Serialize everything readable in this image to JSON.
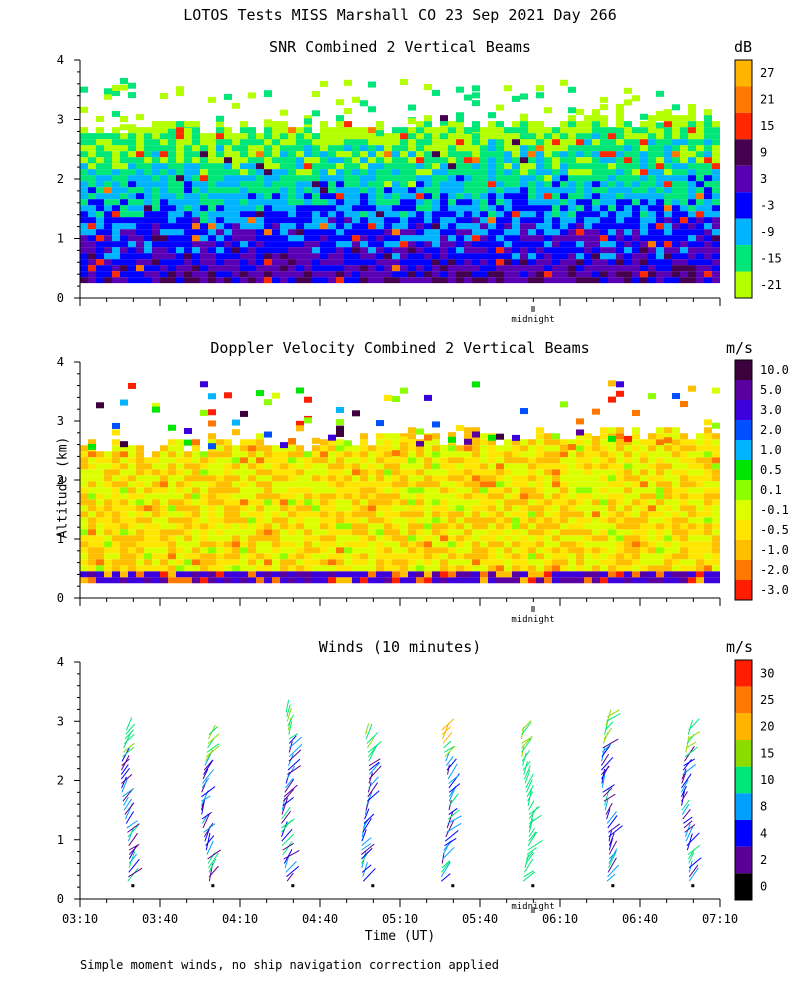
{
  "figure_title": "LOTOS Tests MISS Marshall CO  23 Sep 2021 Day 266",
  "y_axis_label": "Altitude (km)",
  "footnote": "Simple moment winds, no ship navigation correction applied",
  "midnight_label": "midnight",
  "chart_data": [
    {
      "type": "heatmap",
      "title": "SNR Combined 2 Vertical Beams",
      "unit": "dB",
      "ylim": [
        0,
        4
      ],
      "yticks": [
        "0",
        "1",
        "2",
        "3",
        "4"
      ],
      "data_top_km": [
        2.8,
        3.0
      ],
      "colorbar": {
        "labels": [
          "27",
          "21",
          "15",
          "9",
          "3",
          "-3",
          "-9",
          "-15",
          "-21"
        ],
        "colors": [
          "#ffb400",
          "#ff7800",
          "#ff2800",
          "#460050",
          "#5a00b4",
          "#0000ff",
          "#00b4ff",
          "#00e678",
          "#b4ff00"
        ]
      }
    },
    {
      "type": "heatmap",
      "title": "Doppler Velocity Combined 2 Vertical Beams",
      "unit": "m/s",
      "ylim": [
        0,
        4
      ],
      "yticks": [
        "0",
        "1",
        "2",
        "3",
        "4"
      ],
      "data_top_km": [
        2.5,
        2.8
      ],
      "colorbar": {
        "labels": [
          "10.0",
          "5.0",
          "3.0",
          "2.0",
          "1.0",
          "0.5",
          "0.1",
          "-0.1",
          "-0.5",
          "-1.0",
          "-2.0",
          "-3.0"
        ],
        "colors": [
          "#3c003c",
          "#5a00a0",
          "#3c00dc",
          "#0050ff",
          "#00b4ff",
          "#00e600",
          "#8cff00",
          "#dcff00",
          "#ffe600",
          "#ffbe00",
          "#ff7800",
          "#ff1e00"
        ]
      }
    },
    {
      "type": "wind-barbs",
      "title": "Winds (10 minutes)",
      "unit": "m/s",
      "ylim": [
        0,
        4
      ],
      "yticks": [
        "0",
        "1",
        "2",
        "3",
        "4"
      ],
      "xlabel": "Time (UT)",
      "xticks": [
        "03:10",
        "03:40",
        "04:10",
        "04:40",
        "05:10",
        "05:40",
        "06:10",
        "06:40",
        "07:10"
      ],
      "profile_times": [
        "03:30",
        "04:00",
        "04:30",
        "05:00",
        "05:30",
        "06:00",
        "06:30",
        "07:00"
      ],
      "profile_top_km": [
        2.9,
        2.8,
        3.2,
        2.8,
        2.9,
        2.9,
        3.1,
        2.9
      ],
      "colorbar": {
        "labels": [
          "30",
          "25",
          "20",
          "15",
          "10",
          "8",
          "4",
          "2",
          "0"
        ],
        "colors": [
          "#ff1e00",
          "#ff7800",
          "#ffb400",
          "#8cdc00",
          "#00e678",
          "#00a0ff",
          "#0000ff",
          "#5a0096",
          "#000000"
        ]
      }
    }
  ]
}
